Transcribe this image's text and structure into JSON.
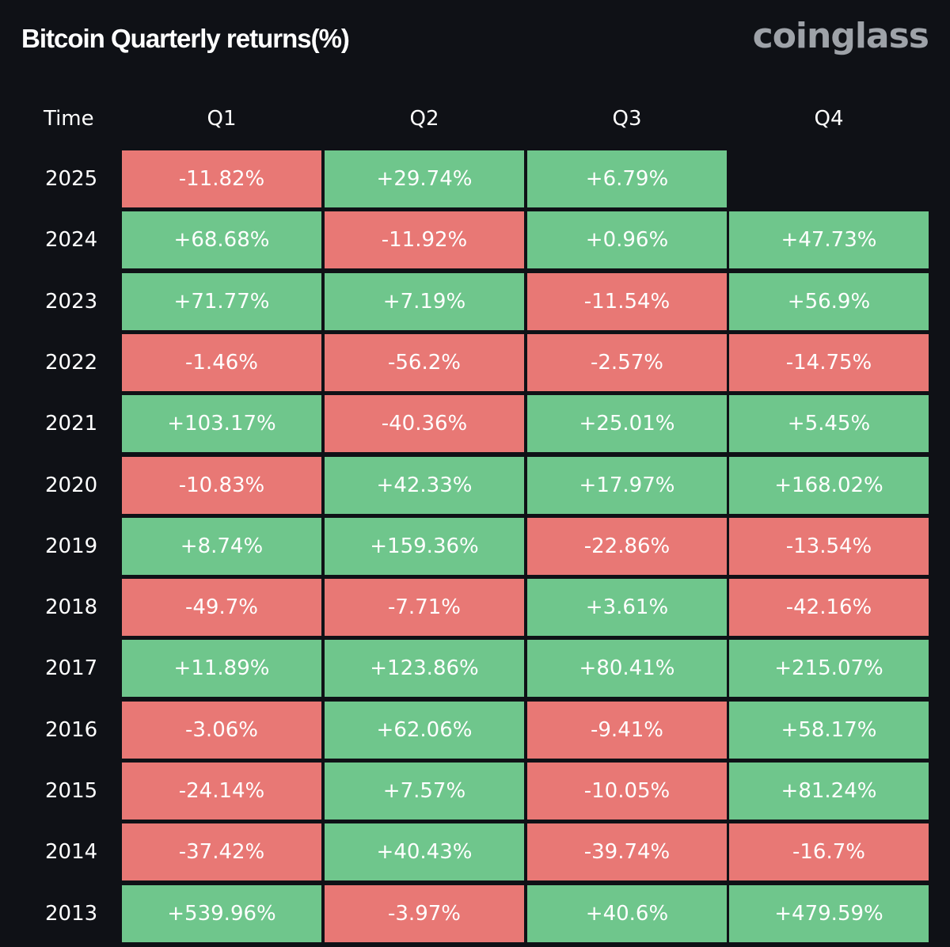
{
  "title": "Bitcoin Quarterly returns(%)",
  "brand": "coinglass",
  "colors": {
    "background": "#0f1116",
    "positive": "#6fc68c",
    "negative": "#e87875",
    "brand": "#9ea2a8"
  },
  "chart_data": {
    "type": "table",
    "title": "Bitcoin Quarterly returns(%)",
    "columns": [
      "Time",
      "Q1",
      "Q2",
      "Q3",
      "Q4"
    ],
    "rows": [
      {
        "year": "2025",
        "values": [
          "-11.82%",
          "+29.74%",
          "+6.79%",
          ""
        ]
      },
      {
        "year": "2024",
        "values": [
          "+68.68%",
          "-11.92%",
          "+0.96%",
          "+47.73%"
        ]
      },
      {
        "year": "2023",
        "values": [
          "+71.77%",
          "+7.19%",
          "-11.54%",
          "+56.9%"
        ]
      },
      {
        "year": "2022",
        "values": [
          "-1.46%",
          "-56.2%",
          "-2.57%",
          "-14.75%"
        ]
      },
      {
        "year": "2021",
        "values": [
          "+103.17%",
          "-40.36%",
          "+25.01%",
          "+5.45%"
        ]
      },
      {
        "year": "2020",
        "values": [
          "-10.83%",
          "+42.33%",
          "+17.97%",
          "+168.02%"
        ]
      },
      {
        "year": "2019",
        "values": [
          "+8.74%",
          "+159.36%",
          "-22.86%",
          "-13.54%"
        ]
      },
      {
        "year": "2018",
        "values": [
          "-49.7%",
          "-7.71%",
          "+3.61%",
          "-42.16%"
        ]
      },
      {
        "year": "2017",
        "values": [
          "+11.89%",
          "+123.86%",
          "+80.41%",
          "+215.07%"
        ]
      },
      {
        "year": "2016",
        "values": [
          "-3.06%",
          "+62.06%",
          "-9.41%",
          "+58.17%"
        ]
      },
      {
        "year": "2015",
        "values": [
          "-24.14%",
          "+7.57%",
          "-10.05%",
          "+81.24%"
        ]
      },
      {
        "year": "2014",
        "values": [
          "-37.42%",
          "+40.43%",
          "-39.74%",
          "-16.7%"
        ]
      },
      {
        "year": "2013",
        "values": [
          "+539.96%",
          "-3.97%",
          "+40.6%",
          "+479.59%"
        ]
      }
    ]
  }
}
